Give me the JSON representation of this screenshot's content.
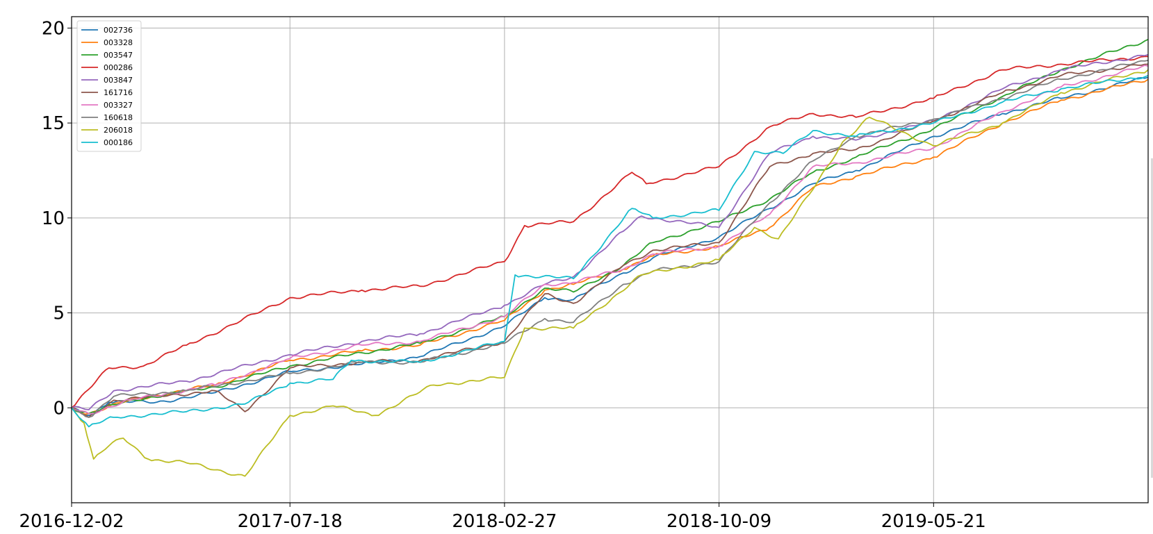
{
  "chart_data": {
    "type": "line",
    "title": "",
    "xlabel": "",
    "ylabel": "",
    "x_tick_labels": [
      "2016-12-02",
      "2017-07-18",
      "2018-02-27",
      "2018-10-09",
      "2019-05-21"
    ],
    "x_range": [
      "2016-12-02",
      "2019-12-31"
    ],
    "y_ticks": [
      0,
      5,
      10,
      15,
      20
    ],
    "y_tick_labels": [
      "0",
      "5",
      "10",
      "15",
      "20"
    ],
    "ylim": [
      -5,
      20.6
    ],
    "grid": true,
    "legend_position": "upper-left",
    "series": [
      {
        "name": "002736",
        "color": "#1f77b4",
        "points": [
          [
            "2016-12-02",
            0
          ],
          [
            "2016-12-20",
            -0.4
          ],
          [
            "2017-01-10",
            0.3
          ],
          [
            "2017-03-01",
            0.3
          ],
          [
            "2017-05-01",
            0.8
          ],
          [
            "2017-07-18",
            1.9
          ],
          [
            "2017-10-01",
            2.3
          ],
          [
            "2017-12-01",
            2.7
          ],
          [
            "2018-02-27",
            4.3
          ],
          [
            "2018-04-10",
            5.8
          ],
          [
            "2018-05-10",
            5.7
          ],
          [
            "2018-07-01",
            7.1
          ],
          [
            "2018-08-01",
            7.9
          ],
          [
            "2018-10-09",
            9.0
          ],
          [
            "2018-12-01",
            10.5
          ],
          [
            "2019-01-15",
            11.8
          ],
          [
            "2019-03-01",
            12.5
          ],
          [
            "2019-05-21",
            14.3
          ],
          [
            "2019-08-01",
            15.5
          ],
          [
            "2019-10-01",
            16.3
          ],
          [
            "2019-12-31",
            17.4
          ]
        ]
      },
      {
        "name": "003328",
        "color": "#ff7f0e",
        "points": [
          [
            "2016-12-02",
            0
          ],
          [
            "2016-12-20",
            -0.3
          ],
          [
            "2017-02-01",
            0.4
          ],
          [
            "2017-05-01",
            1.2
          ],
          [
            "2017-07-18",
            2.5
          ],
          [
            "2017-10-01",
            3.0
          ],
          [
            "2017-12-01",
            3.3
          ],
          [
            "2018-02-27",
            4.6
          ],
          [
            "2018-04-10",
            6.2
          ],
          [
            "2018-05-10",
            6.5
          ],
          [
            "2018-07-01",
            7.3
          ],
          [
            "2018-08-01",
            8.0
          ],
          [
            "2018-10-09",
            8.5
          ],
          [
            "2018-12-01",
            9.5
          ],
          [
            "2019-01-15",
            11.6
          ],
          [
            "2019-03-01",
            12.2
          ],
          [
            "2019-05-21",
            13.2
          ],
          [
            "2019-08-01",
            15.0
          ],
          [
            "2019-10-01",
            16.2
          ],
          [
            "2019-12-31",
            17.3
          ]
        ]
      },
      {
        "name": "003547",
        "color": "#2ca02c",
        "points": [
          [
            "2016-12-02",
            0
          ],
          [
            "2016-12-20",
            -0.3
          ],
          [
            "2017-02-01",
            0.4
          ],
          [
            "2017-05-01",
            1.1
          ],
          [
            "2017-07-18",
            2.2
          ],
          [
            "2017-10-01",
            2.9
          ],
          [
            "2017-12-01",
            3.4
          ],
          [
            "2018-02-27",
            4.8
          ],
          [
            "2018-04-10",
            6.3
          ],
          [
            "2018-05-10",
            6.1
          ],
          [
            "2018-07-01",
            7.5
          ],
          [
            "2018-08-01",
            8.7
          ],
          [
            "2018-10-09",
            9.8
          ],
          [
            "2018-12-01",
            11.0
          ],
          [
            "2019-01-15",
            12.4
          ],
          [
            "2019-03-01",
            13.2
          ],
          [
            "2019-05-21",
            14.7
          ],
          [
            "2019-08-01",
            16.4
          ],
          [
            "2019-10-01",
            17.8
          ],
          [
            "2019-12-31",
            19.4
          ]
        ]
      },
      {
        "name": "000286",
        "color": "#d62728",
        "points": [
          [
            "2016-12-02",
            0
          ],
          [
            "2017-01-10",
            2.1
          ],
          [
            "2017-02-15",
            2.2
          ],
          [
            "2017-04-01",
            3.3
          ],
          [
            "2017-05-20",
            4.4
          ],
          [
            "2017-07-18",
            5.8
          ],
          [
            "2017-10-01",
            6.2
          ],
          [
            "2017-12-01",
            6.4
          ],
          [
            "2018-02-27",
            7.7
          ],
          [
            "2018-03-20",
            9.6
          ],
          [
            "2018-05-10",
            9.8
          ],
          [
            "2018-07-10",
            12.4
          ],
          [
            "2018-07-25",
            11.8
          ],
          [
            "2018-10-09",
            12.7
          ],
          [
            "2018-12-01",
            14.8
          ],
          [
            "2019-01-15",
            15.5
          ],
          [
            "2019-03-01",
            15.3
          ],
          [
            "2019-05-21",
            16.3
          ],
          [
            "2019-08-01",
            17.8
          ],
          [
            "2019-10-01",
            18.1
          ],
          [
            "2019-12-31",
            18.5
          ]
        ]
      },
      {
        "name": "003847",
        "color": "#9467bd",
        "points": [
          [
            "2016-12-02",
            0
          ],
          [
            "2016-12-20",
            -0.1
          ],
          [
            "2017-01-15",
            0.9
          ],
          [
            "2017-04-01",
            1.4
          ],
          [
            "2017-07-18",
            2.8
          ],
          [
            "2017-10-01",
            3.5
          ],
          [
            "2017-12-01",
            3.9
          ],
          [
            "2018-02-27",
            5.4
          ],
          [
            "2018-04-10",
            6.5
          ],
          [
            "2018-05-10",
            6.9
          ],
          [
            "2018-07-01",
            9.3
          ],
          [
            "2018-07-20",
            10.1
          ],
          [
            "2018-10-09",
            9.5
          ],
          [
            "2018-12-01",
            13.4
          ],
          [
            "2019-01-15",
            14.3
          ],
          [
            "2019-03-01",
            14.1
          ],
          [
            "2019-05-21",
            15.1
          ],
          [
            "2019-08-01",
            16.8
          ],
          [
            "2019-10-01",
            17.8
          ],
          [
            "2019-12-31",
            18.6
          ]
        ]
      },
      {
        "name": "161716",
        "color": "#8c564b",
        "points": [
          [
            "2016-12-02",
            0
          ],
          [
            "2016-12-20",
            -0.5
          ],
          [
            "2017-01-15",
            0.4
          ],
          [
            "2017-03-01",
            0.6
          ],
          [
            "2017-05-01",
            0.9
          ],
          [
            "2017-06-01",
            -0.2
          ],
          [
            "2017-07-18",
            2.1
          ],
          [
            "2017-10-01",
            2.4
          ],
          [
            "2017-12-01",
            2.5
          ],
          [
            "2018-02-27",
            3.5
          ],
          [
            "2018-04-10",
            6.0
          ],
          [
            "2018-05-10",
            5.5
          ],
          [
            "2018-07-01",
            7.5
          ],
          [
            "2018-08-01",
            8.3
          ],
          [
            "2018-10-09",
            8.7
          ],
          [
            "2018-12-01",
            12.7
          ],
          [
            "2019-01-15",
            13.4
          ],
          [
            "2019-03-01",
            13.6
          ],
          [
            "2019-05-21",
            15.1
          ],
          [
            "2019-08-01",
            16.6
          ],
          [
            "2019-10-01",
            17.5
          ],
          [
            "2019-12-31",
            18.1
          ]
        ]
      },
      {
        "name": "003327",
        "color": "#e377c2",
        "points": [
          [
            "2016-12-02",
            0
          ],
          [
            "2016-12-20",
            -0.3
          ],
          [
            "2017-02-01",
            0.4
          ],
          [
            "2017-05-01",
            1.2
          ],
          [
            "2017-07-18",
            2.6
          ],
          [
            "2017-10-01",
            3.3
          ],
          [
            "2017-12-01",
            3.5
          ],
          [
            "2018-02-27",
            4.8
          ],
          [
            "2018-04-10",
            6.5
          ],
          [
            "2018-05-10",
            6.6
          ],
          [
            "2018-07-01",
            7.3
          ],
          [
            "2018-08-01",
            8.1
          ],
          [
            "2018-10-09",
            8.5
          ],
          [
            "2018-12-01",
            10.2
          ],
          [
            "2019-01-15",
            12.7
          ],
          [
            "2019-03-01",
            12.9
          ],
          [
            "2019-05-21",
            13.7
          ],
          [
            "2019-08-01",
            15.6
          ],
          [
            "2019-10-01",
            16.9
          ],
          [
            "2019-12-31",
            18.0
          ]
        ]
      },
      {
        "name": "160618",
        "color": "#7f7f7f",
        "points": [
          [
            "2016-12-02",
            0
          ],
          [
            "2016-12-20",
            -0.5
          ],
          [
            "2017-01-15",
            0.6
          ],
          [
            "2017-04-01",
            0.9
          ],
          [
            "2017-07-18",
            1.8
          ],
          [
            "2017-10-01",
            2.4
          ],
          [
            "2017-12-01",
            2.4
          ],
          [
            "2018-02-27",
            3.4
          ],
          [
            "2018-04-10",
            4.7
          ],
          [
            "2018-05-10",
            4.5
          ],
          [
            "2018-07-01",
            6.5
          ],
          [
            "2018-08-01",
            7.2
          ],
          [
            "2018-10-09",
            7.7
          ],
          [
            "2018-12-01",
            10.8
          ],
          [
            "2019-01-15",
            13.0
          ],
          [
            "2019-03-01",
            14.3
          ],
          [
            "2019-05-21",
            15.2
          ],
          [
            "2019-08-01",
            16.3
          ],
          [
            "2019-10-01",
            17.3
          ],
          [
            "2019-12-31",
            18.3
          ]
        ]
      },
      {
        "name": "206018",
        "color": "#bcbd22",
        "points": [
          [
            "2016-12-02",
            0
          ],
          [
            "2016-12-15",
            -0.8
          ],
          [
            "2016-12-25",
            -2.7
          ],
          [
            "2017-01-10",
            -2.0
          ],
          [
            "2017-01-25",
            -1.6
          ],
          [
            "2017-02-20",
            -2.7
          ],
          [
            "2017-04-01",
            -2.9
          ],
          [
            "2017-06-01",
            -3.6
          ],
          [
            "2017-07-18",
            -0.4
          ],
          [
            "2017-09-01",
            0.1
          ],
          [
            "2017-10-15",
            -0.4
          ],
          [
            "2017-12-15",
            1.2
          ],
          [
            "2018-02-27",
            1.6
          ],
          [
            "2018-03-20",
            4.2
          ],
          [
            "2018-05-10",
            4.2
          ],
          [
            "2018-06-20",
            5.8
          ],
          [
            "2018-07-20",
            7.0
          ],
          [
            "2018-10-09",
            7.8
          ],
          [
            "2018-11-15",
            9.5
          ],
          [
            "2018-12-10",
            8.9
          ],
          [
            "2019-01-15",
            11.5
          ],
          [
            "2019-02-15",
            14.0
          ],
          [
            "2019-03-15",
            15.3
          ],
          [
            "2019-05-21",
            13.8
          ],
          [
            "2019-08-01",
            15.0
          ],
          [
            "2019-10-01",
            16.6
          ],
          [
            "2019-12-31",
            17.8
          ]
        ]
      },
      {
        "name": "000186",
        "color": "#17becf",
        "points": [
          [
            "2016-12-02",
            0
          ],
          [
            "2016-12-20",
            -1.0
          ],
          [
            "2017-01-15",
            -0.5
          ],
          [
            "2017-04-01",
            -0.2
          ],
          [
            "2017-06-01",
            0.2
          ],
          [
            "2017-07-18",
            1.3
          ],
          [
            "2017-09-01",
            1.5
          ],
          [
            "2017-09-20",
            2.5
          ],
          [
            "2017-12-01",
            2.4
          ],
          [
            "2018-02-27",
            3.5
          ],
          [
            "2018-03-10",
            7.0
          ],
          [
            "2018-05-10",
            6.8
          ],
          [
            "2018-07-10",
            10.5
          ],
          [
            "2018-08-01",
            10.0
          ],
          [
            "2018-10-09",
            10.4
          ],
          [
            "2018-11-15",
            13.5
          ],
          [
            "2018-12-15",
            13.4
          ],
          [
            "2019-01-15",
            14.6
          ],
          [
            "2019-03-01",
            14.3
          ],
          [
            "2019-05-21",
            15.0
          ],
          [
            "2019-08-01",
            16.1
          ],
          [
            "2019-10-01",
            16.8
          ],
          [
            "2019-12-31",
            17.5
          ]
        ]
      }
    ]
  }
}
